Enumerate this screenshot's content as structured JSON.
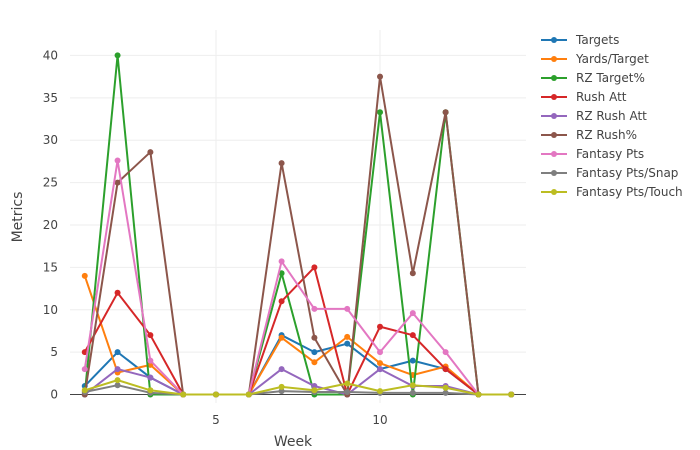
{
  "chart_data": {
    "type": "line",
    "title": "",
    "xlabel": "Week",
    "ylabel": "Metrics",
    "xlim": [
      0.55,
      14.45
    ],
    "ylim": [
      -1,
      43
    ],
    "x_ticks": [
      5,
      10
    ],
    "y_ticks": [
      0,
      5,
      10,
      15,
      20,
      25,
      30,
      35,
      40
    ],
    "grid": true,
    "legend_position": "right",
    "x": [
      1,
      2,
      3,
      4,
      5,
      6,
      7,
      8,
      9,
      10,
      11,
      12,
      13,
      14
    ],
    "series": [
      {
        "name": "Targets",
        "color": "#1f77b4",
        "values": [
          1,
          5,
          2,
          0,
          0,
          0,
          7,
          5,
          6,
          3,
          4,
          3,
          0,
          0
        ]
      },
      {
        "name": "Yards/Target",
        "color": "#ff7f0e",
        "values": [
          14,
          2.6,
          3.5,
          0,
          0,
          0,
          6.7,
          3.8,
          6.8,
          3.7,
          2.3,
          3.3,
          0,
          0
        ]
      },
      {
        "name": "RZ Target%",
        "color": "#2ca02c",
        "values": [
          0,
          40,
          0,
          0,
          0,
          0,
          14.3,
          0,
          0,
          33.3,
          0,
          33.3,
          0,
          0
        ]
      },
      {
        "name": "Rush Att",
        "color": "#d62728",
        "values": [
          5,
          12,
          7,
          0,
          0,
          0,
          11,
          15,
          0,
          8,
          7,
          3,
          0,
          0
        ]
      },
      {
        "name": "RZ Rush Att",
        "color": "#9467bd",
        "values": [
          0,
          3,
          2,
          0,
          0,
          0,
          3,
          1,
          0,
          3,
          1,
          1,
          0,
          0
        ]
      },
      {
        "name": "RZ Rush%",
        "color": "#8c564b",
        "values": [
          0,
          25,
          28.6,
          0,
          0,
          0,
          27.3,
          6.7,
          0,
          37.5,
          14.3,
          33.3,
          0,
          0
        ]
      },
      {
        "name": "Fantasy Pts",
        "color": "#e377c2",
        "values": [
          3,
          27.6,
          4,
          0,
          0,
          0,
          15.7,
          10.1,
          10.1,
          5,
          9.6,
          5,
          0,
          0
        ]
      },
      {
        "name": "Fantasy Pts/Snap",
        "color": "#7f7f7f",
        "values": [
          0.3,
          1.1,
          0.2,
          0,
          0,
          0,
          0.4,
          0.3,
          0.3,
          0.2,
          0.2,
          0.2,
          0,
          0
        ]
      },
      {
        "name": "Fantasy Pts/Touch",
        "color": "#bcbd22",
        "values": [
          0.5,
          1.7,
          0.5,
          0,
          0,
          0,
          0.9,
          0.5,
          1.3,
          0.4,
          1.1,
          0.8,
          0,
          0
        ]
      }
    ]
  }
}
